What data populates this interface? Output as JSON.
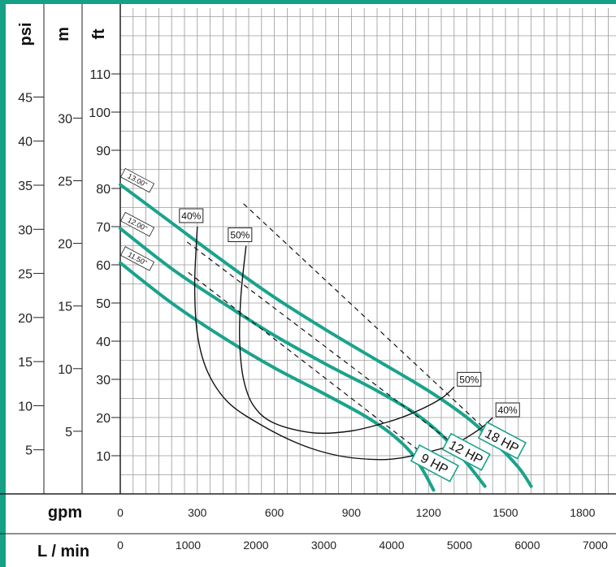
{
  "chart_data": {
    "type": "line",
    "axes": {
      "psi": {
        "unit_label": "psi",
        "ticks": [
          "5",
          "10",
          "15",
          "20",
          "25",
          "30",
          "35",
          "40",
          "45"
        ]
      },
      "m": {
        "unit_label": "m",
        "ticks": [
          "5",
          "10",
          "15",
          "20",
          "25",
          "30"
        ]
      },
      "ft": {
        "unit_label": "ft",
        "ticks": [
          "10",
          "20",
          "30",
          "40",
          "50",
          "60",
          "70",
          "80",
          "90",
          "100",
          "110"
        ]
      },
      "gpm": {
        "unit_label": "gpm",
        "ticks": [
          "0",
          "300",
          "600",
          "900",
          "1200",
          "1500",
          "1800"
        ]
      },
      "lmin": {
        "unit_label": "L / min",
        "ticks": [
          "0",
          "1000",
          "2000",
          "3000",
          "4000",
          "5000",
          "6000",
          "7000"
        ]
      }
    },
    "x_unit": "gpm",
    "y_unit": "ft",
    "grid": true,
    "series": [
      {
        "name": "13.00\"",
        "x": [
          0,
          200,
          400,
          600,
          800,
          1000,
          1200,
          1350,
          1450,
          1550,
          1600
        ],
        "y": [
          81,
          71,
          61,
          51.5,
          43,
          35,
          27,
          20,
          14,
          7,
          2
        ]
      },
      {
        "name": "12.00\"",
        "x": [
          0,
          200,
          400,
          600,
          800,
          1000,
          1150,
          1250,
          1350,
          1420
        ],
        "y": [
          69.5,
          59,
          50,
          41.5,
          34,
          27,
          21,
          15.5,
          8,
          2
        ]
      },
      {
        "name": "11.50\"",
        "x": [
          0,
          200,
          400,
          600,
          800,
          950,
          1050,
          1130,
          1180,
          1220
        ],
        "y": [
          60.5,
          50,
          41,
          33,
          26,
          20.5,
          16,
          11,
          6,
          1
        ]
      }
    ],
    "efficiency_curves": [
      {
        "label": "40%",
        "x": [
          300,
          290,
          300,
          340,
          420,
          550,
          700,
          850,
          1000,
          1100,
          1200,
          1300,
          1400,
          1450
        ],
        "y": [
          70,
          55,
          42,
          32,
          24,
          18,
          13,
          10,
          9,
          9.5,
          11,
          13,
          17,
          20
        ]
      },
      {
        "label": "50%",
        "x": [
          490,
          470,
          465,
          480,
          520,
          600,
          750,
          900,
          1050,
          1150,
          1250,
          1300
        ],
        "y": [
          65,
          52,
          40,
          30,
          23,
          18.5,
          16,
          16.5,
          19,
          21.5,
          25,
          28
        ]
      }
    ],
    "power_lines": [
      {
        "label": "9 HP",
        "x": [
          265,
          1170
        ],
        "y": [
          58,
          11
        ]
      },
      {
        "label": "12 HP",
        "x": [
          260,
          1280
        ],
        "y": [
          66,
          14
        ]
      },
      {
        "label": "18 HP",
        "x": [
          480,
          1420
        ],
        "y": [
          76,
          17
        ]
      }
    ],
    "curve_labels": [
      "13.00\"",
      "12.00\"",
      "11.50\""
    ],
    "colors": {
      "frame": "#16a085",
      "curve": "#1aa38c",
      "grid": "#9a9a9a",
      "ink": "#111111"
    }
  }
}
